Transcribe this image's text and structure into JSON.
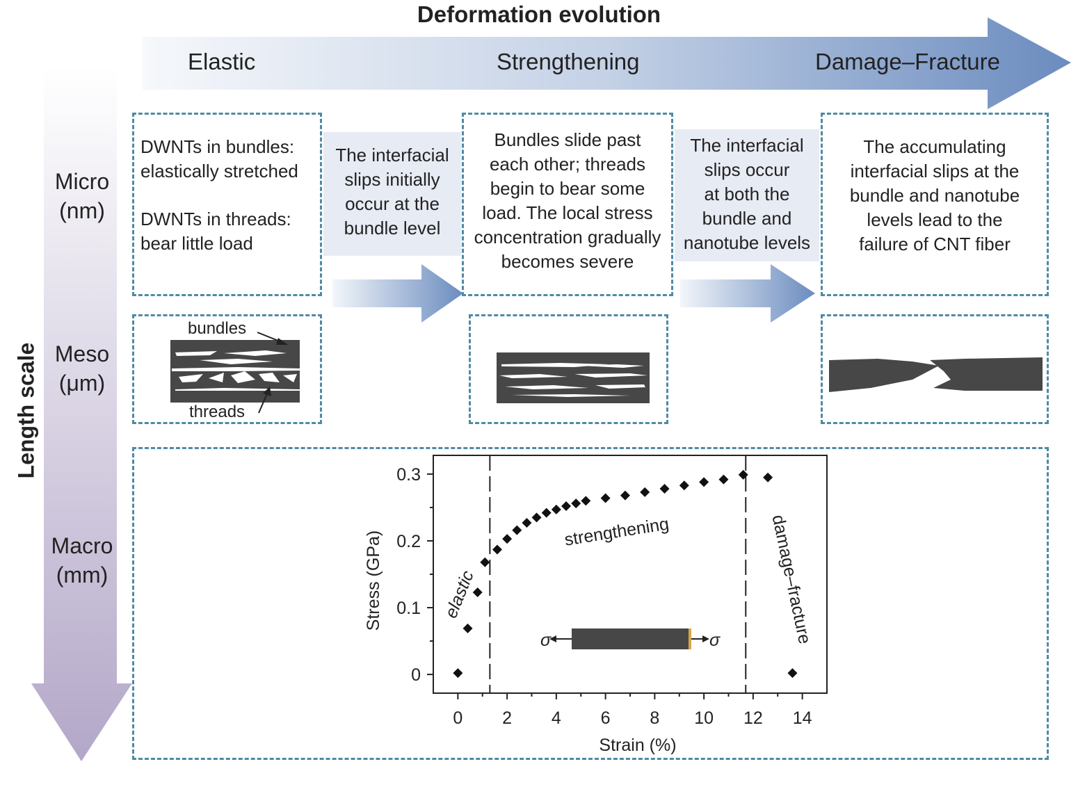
{
  "title": "Deformation evolution",
  "stages": [
    "Elastic",
    "Strengthening",
    "Damage–Fracture"
  ],
  "axis_label": "Length scale",
  "scales": {
    "micro": [
      "Micro",
      "(nm)"
    ],
    "meso": [
      "Meso",
      "(μm)"
    ],
    "macro": [
      "Macro",
      "(mm)"
    ]
  },
  "micro_text": {
    "elastic_1": [
      "DWNTs in bundles:",
      "elastically stretched"
    ],
    "elastic_2": [
      "DWNTs in threads:",
      "bear little load"
    ],
    "transition_1": [
      "The interfacial",
      "slips initially",
      "occur at the",
      "bundle level"
    ],
    "strengthening": [
      "Bundles slide past",
      "each other; threads",
      "begin to bear some",
      "load. The local stress",
      "concentration gradually",
      "becomes severe"
    ],
    "transition_2": [
      "The interfacial",
      "slips occur",
      "at both the",
      "bundle and",
      "nanotube levels"
    ],
    "fracture": [
      "The accumulating",
      "interfacial slips at the",
      "bundle and nanotube",
      "levels lead to the",
      "failure of CNT fiber"
    ]
  },
  "meso_labels": {
    "bundles": "bundles",
    "threads": "threads"
  },
  "colors": {
    "dashed_border": "#4f8aa3",
    "arrow_dark": "#6b8cbf",
    "arrow_light": "#eef2f8",
    "scale_arrow": "#b9aecb",
    "material": "#474747"
  },
  "chart_data": {
    "type": "scatter",
    "xlabel": "Strain (%)",
    "ylabel": "Stress (GPa)",
    "xlim": [
      -1,
      15
    ],
    "ylim": [
      -0.028,
      0.328
    ],
    "xticks": [
      0,
      2,
      4,
      6,
      8,
      10,
      12,
      14
    ],
    "yticks": [
      0,
      0.1,
      0.2,
      0.3
    ],
    "xtick_labels": [
      "0",
      "2",
      "4",
      "6",
      "8",
      "10",
      "12",
      "14"
    ],
    "ytick_labels": [
      "0",
      "0.1",
      "0.2",
      "0.3"
    ],
    "vlines": [
      1.3,
      11.7
    ],
    "regions": [
      "elastic",
      "strengthening",
      "damage–fracture"
    ],
    "inset_symbols": [
      "σ",
      "σ"
    ],
    "points": [
      [
        0,
        0.002
      ],
      [
        0.4,
        0.069
      ],
      [
        0.8,
        0.123
      ],
      [
        1.1,
        0.168
      ],
      [
        1.6,
        0.187
      ],
      [
        2.0,
        0.203
      ],
      [
        2.4,
        0.216
      ],
      [
        2.8,
        0.227
      ],
      [
        3.2,
        0.235
      ],
      [
        3.6,
        0.242
      ],
      [
        4.0,
        0.247
      ],
      [
        4.4,
        0.252
      ],
      [
        4.8,
        0.256
      ],
      [
        5.2,
        0.26
      ],
      [
        6.0,
        0.264
      ],
      [
        6.8,
        0.268
      ],
      [
        7.6,
        0.273
      ],
      [
        8.4,
        0.278
      ],
      [
        9.2,
        0.283
      ],
      [
        10.0,
        0.288
      ],
      [
        10.8,
        0.292
      ],
      [
        11.6,
        0.299
      ],
      [
        12.6,
        0.295
      ],
      [
        13.6,
        0.002
      ]
    ]
  }
}
